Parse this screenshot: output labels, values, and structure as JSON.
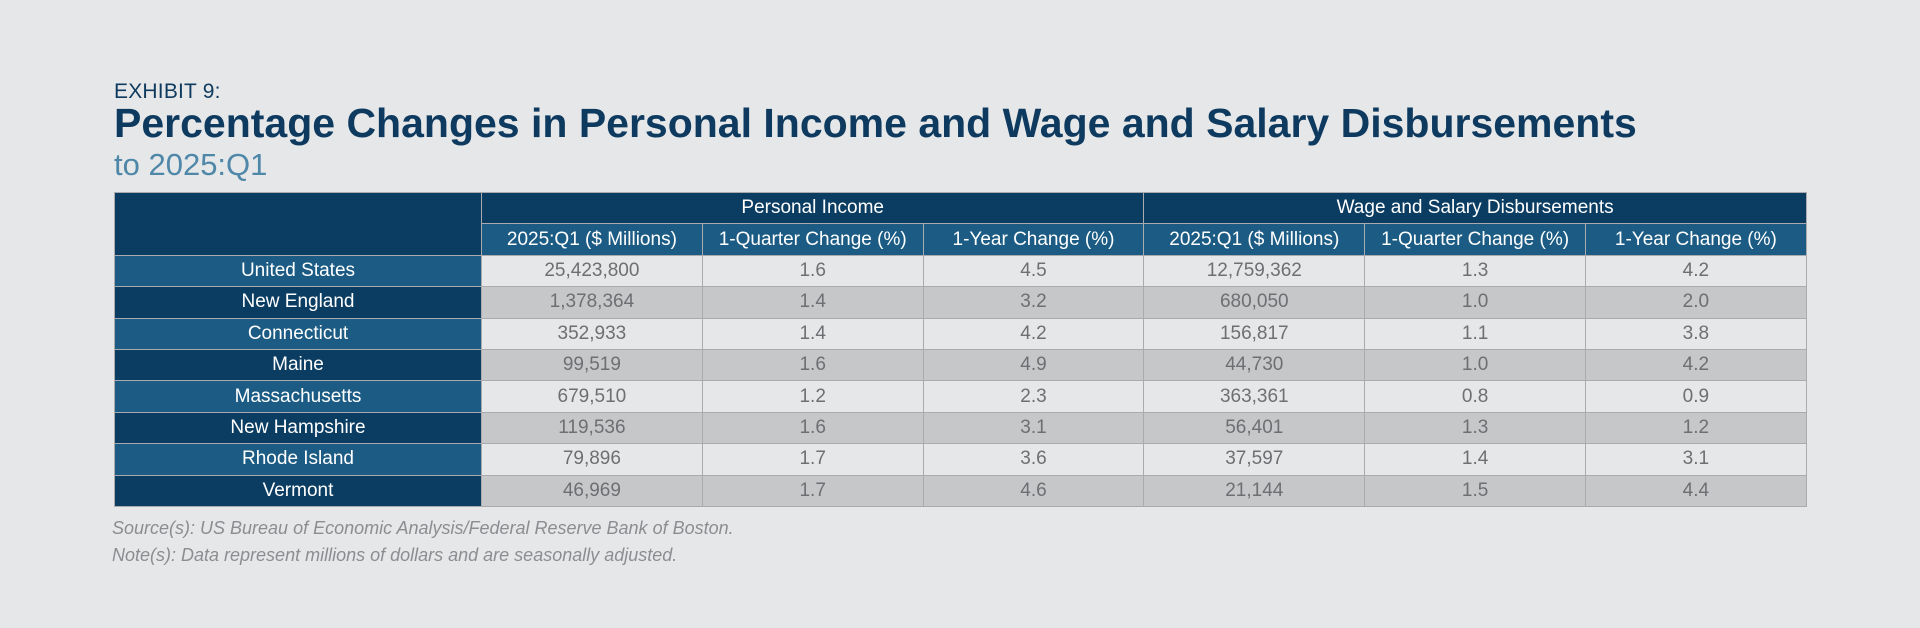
{
  "header": {
    "exhibit": "EXHIBIT 9:",
    "title": "Percentage Changes in Personal Income and Wage and Salary Disbursements",
    "subtitle": "to 2025:Q1"
  },
  "chart_data": {
    "type": "table",
    "title": "Percentage Changes in Personal Income and Wage and Salary Disbursements",
    "subtitle": "to 2025:Q1",
    "groups": [
      "Personal Income",
      "Wage and Salary Disbursements"
    ],
    "columns": [
      "2025:Q1 ($ Millions)",
      "1-Quarter Change (%)",
      "1-Year Change (%)",
      "2025:Q1 ($ Millions)",
      "1-Quarter Change (%)",
      "1-Year Change (%)"
    ],
    "rows": [
      {
        "label": "United States",
        "level": 0,
        "values": [
          "25,423,800",
          "1.6",
          "4.5",
          "12,759,362",
          "1.3",
          "4.2"
        ]
      },
      {
        "label": "New England",
        "level": 1,
        "values": [
          "1,378,364",
          "1.4",
          "3.2",
          "680,050",
          "1.0",
          "2.0"
        ]
      },
      {
        "label": "Connecticut",
        "level": 2,
        "values": [
          "352,933",
          "1.4",
          "4.2",
          "156,817",
          "1.1",
          "3.8"
        ]
      },
      {
        "label": "Maine",
        "level": 2,
        "values": [
          "99,519",
          "1.6",
          "4.9",
          "44,730",
          "1.0",
          "4.2"
        ]
      },
      {
        "label": "Massachusetts",
        "level": 2,
        "values": [
          "679,510",
          "1.2",
          "2.3",
          "363,361",
          "0.8",
          "0.9"
        ]
      },
      {
        "label": "New Hampshire",
        "level": 2,
        "values": [
          "119,536",
          "1.6",
          "3.1",
          "56,401",
          "1.3",
          "1.2"
        ]
      },
      {
        "label": "Rhode Island",
        "level": 2,
        "values": [
          "79,896",
          "1.7",
          "3.6",
          "37,597",
          "1.4",
          "3.1"
        ]
      },
      {
        "label": "Vermont",
        "level": 2,
        "values": [
          "46,969",
          "1.7",
          "4.6",
          "21,144",
          "1.5",
          "4.4"
        ]
      }
    ]
  },
  "footer": {
    "source": "Source(s): US Bureau of Economic Analysis/Federal Reserve Bank of Boston.",
    "note": "Note(s): Data represent millions of dollars and are seasonally adjusted."
  }
}
